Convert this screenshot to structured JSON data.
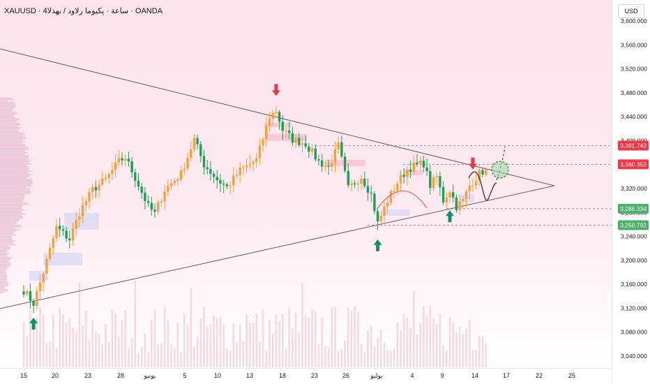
{
  "header": {
    "title": "XAUUSD · 4ساعة · پکیوما رلاود / بهذلا · OANDA"
  },
  "currency_button": {
    "label": "USD"
  },
  "colors": {
    "up": "#f2a23a",
    "down": "#1f9e5a",
    "trend_line": "#5c5f66",
    "resistance_arrow": "#e53a46",
    "support_arrow": "#13906a",
    "level_red": "#f23645",
    "level_green": "#4caf6a",
    "zone_pink": "#f9c3d2",
    "zone_blue": "#dcdaf5"
  },
  "chart_data": {
    "type": "candlestick",
    "symbol": "XAUUSD",
    "timeframe": "4h",
    "broker": "OANDA",
    "ylim": [
      3020,
      3620
    ],
    "y_ticks": [
      "3,600.000",
      "3,560.000",
      "3,520.000",
      "3,480.000",
      "3,440.000",
      "3,400.000",
      "3,360.000",
      "3,320.000",
      "3,280.000",
      "3,240.000",
      "3,200.000",
      "3,160.000",
      "3,120.000",
      "3,080.000",
      "3,040.000"
    ],
    "x_ticks": [
      "15",
      "20",
      "23",
      "28",
      "يونيو",
      "5",
      "10",
      "13",
      "18",
      "23",
      "26",
      "يوليو",
      "4",
      "9",
      "14",
      "17",
      "22",
      "25"
    ],
    "path": [
      [
        0,
        3150
      ],
      [
        3,
        3128
      ],
      [
        6,
        3180
      ],
      [
        10,
        3255
      ],
      [
        14,
        3235
      ],
      [
        17,
        3280
      ],
      [
        21,
        3318
      ],
      [
        25,
        3335
      ],
      [
        29,
        3365
      ],
      [
        31,
        3372
      ],
      [
        34,
        3338
      ],
      [
        38,
        3290
      ],
      [
        40,
        3278
      ],
      [
        43,
        3318
      ],
      [
        48,
        3345
      ],
      [
        52,
        3402
      ],
      [
        55,
        3360
      ],
      [
        59,
        3335
      ],
      [
        62,
        3322
      ],
      [
        66,
        3350
      ],
      [
        71,
        3368
      ],
      [
        75,
        3440
      ],
      [
        77,
        3450
      ],
      [
        79,
        3418
      ],
      [
        82,
        3402
      ],
      [
        86,
        3395
      ],
      [
        90,
        3365
      ],
      [
        93,
        3355
      ],
      [
        96,
        3392
      ],
      [
        99,
        3320
      ],
      [
        103,
        3340
      ],
      [
        106,
        3310
      ],
      [
        108,
        3262
      ],
      [
        111,
        3300
      ],
      [
        114,
        3330
      ],
      [
        117,
        3352
      ],
      [
        119,
        3358
      ],
      [
        122,
        3362
      ],
      [
        124,
        3325
      ],
      [
        126,
        3340
      ],
      [
        128,
        3300
      ],
      [
        130,
        3318
      ],
      [
        132,
        3290
      ],
      [
        134,
        3300
      ],
      [
        136,
        3325
      ],
      [
        139,
        3345
      ],
      [
        141,
        3352
      ]
    ],
    "price_labels": [
      {
        "value": 3391.743,
        "text": "3,391.743",
        "kind": "resistance"
      },
      {
        "value": 3360.353,
        "text": "3,360.353",
        "kind": "resistance"
      },
      {
        "value": 3286.334,
        "text": "3,286.334",
        "kind": "support"
      },
      {
        "value": 3258.792,
        "text": "3,258.792",
        "kind": "support"
      }
    ],
    "arrows": [
      {
        "x_index": 3,
        "kind": "up",
        "at": "bottom"
      },
      {
        "x_index": 77,
        "kind": "down",
        "at": "top"
      },
      {
        "x_index": 108,
        "kind": "up",
        "at": "bottom"
      },
      {
        "x_index": 130,
        "kind": "up",
        "at": "bottom"
      },
      {
        "x_index": 137,
        "kind": "down",
        "at": "top"
      }
    ]
  }
}
